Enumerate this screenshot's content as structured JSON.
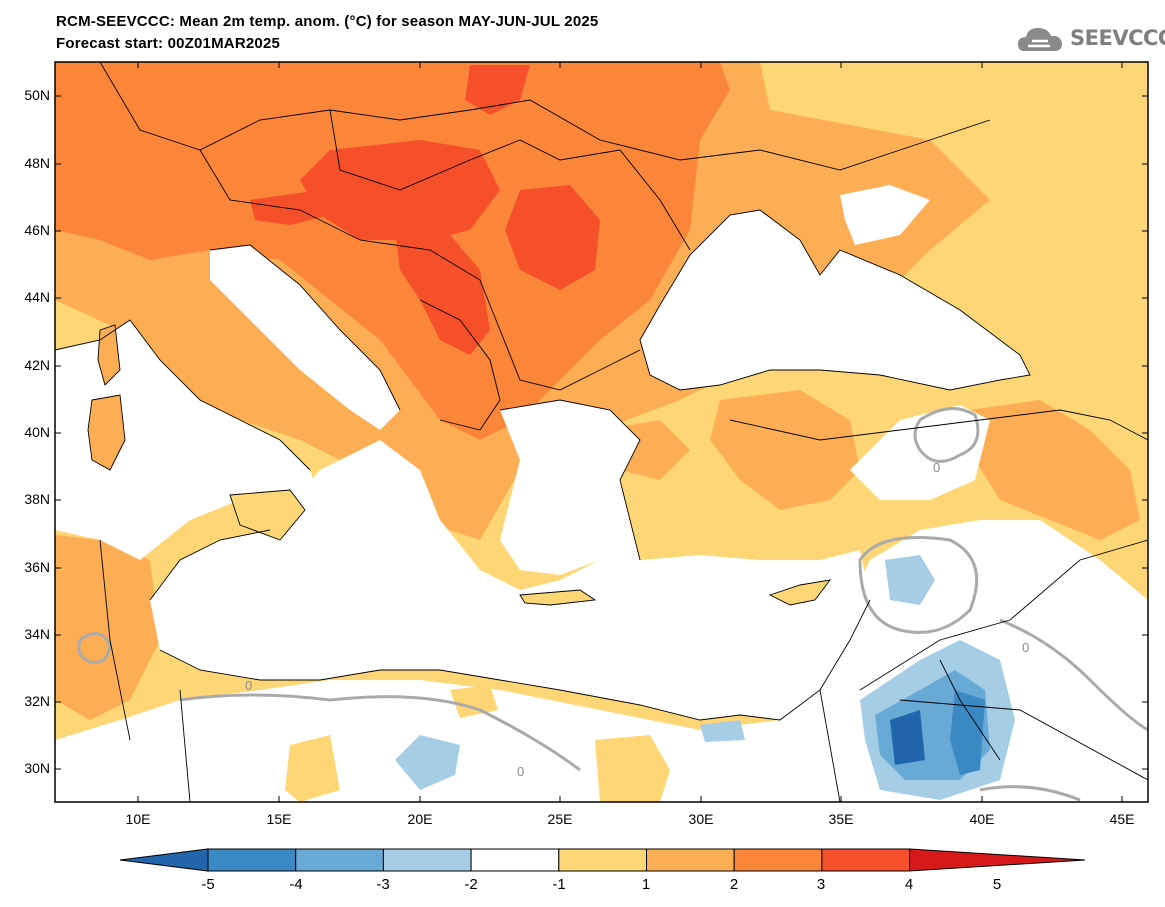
{
  "header": {
    "title_line1": "RCM-SEEVCCC: Mean 2m temp. anom. (°C) for season MAY-JUN-JUL 2025",
    "title_line2": "Forecast start: 00Z01MAR2025"
  },
  "logo": {
    "text": "SEEVCCC",
    "icon": "cloud-icon"
  },
  "map": {
    "lat_labels": [
      "50N",
      "48N",
      "46N",
      "44N",
      "42N",
      "40N",
      "38N",
      "36N",
      "34N",
      "32N",
      "30N"
    ],
    "lon_labels": [
      "10E",
      "15E",
      "20E",
      "25E",
      "30E",
      "35E",
      "40E",
      "45E"
    ],
    "contour_labels": [
      "0",
      "0",
      "0",
      "0"
    ]
  },
  "colorbar": {
    "labels": [
      "-5",
      "-4",
      "-3",
      "-2",
      "-1",
      "1",
      "2",
      "3",
      "4",
      "5"
    ],
    "colors": [
      "#2166ac",
      "#3a88c4",
      "#69a9d6",
      "#a5cde6",
      "#ffffff",
      "#fed675",
      "#fdae55",
      "#fb8639",
      "#f5502a",
      "#d7191c"
    ]
  }
}
